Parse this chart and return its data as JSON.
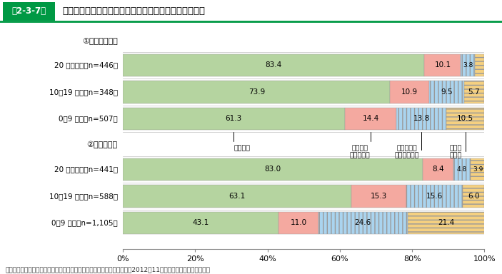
{
  "header_label": "第2-3-7図",
  "header_bg": "#009944",
  "title_text": "規模別・事業承継時期別の現経営者と先代経営者の関係",
  "section1_label": "①小規模事業者",
  "section2_label": "②中規模企業",
  "rows": [
    {
      "label": "20 年以上前（n=446）",
      "values": [
        83.4,
        10.1,
        3.8,
        2.7
      ]
    },
    {
      "label": "10～19 年前（n=348）",
      "values": [
        73.9,
        10.9,
        9.5,
        5.7
      ]
    },
    {
      "label": "0～9 年前（n=507）",
      "values": [
        61.3,
        14.4,
        13.8,
        10.5
      ]
    },
    {
      "label": "20 年以上前（n=441）",
      "values": [
        83.0,
        8.4,
        4.8,
        3.9
      ]
    },
    {
      "label": "10～19 年前（n=588）",
      "values": [
        63.1,
        15.3,
        15.6,
        6.0
      ]
    },
    {
      "label": "0～9 年前（n=1,105）",
      "values": [
        43.1,
        11.0,
        24.6,
        21.4
      ]
    }
  ],
  "colors": [
    "#b5d4a0",
    "#f4a9a0",
    "#aad4ef",
    "#f5d080"
  ],
  "legend_labels": [
    "息子・娘",
    "息子・娘\n以外の親族",
    "親族以外の\n役員・従業員",
    "社外の\n第三者"
  ],
  "footer": "資料：中小企業庁委色「中小企業の事業承継に関するアンケート調査」（2012年11月、（株）野村総合研究所）",
  "xtick_labels": [
    "0%",
    "20%",
    "40%",
    "60%",
    "80%",
    "100%"
  ],
  "xtick_vals": [
    0,
    20,
    40,
    60,
    80,
    100
  ]
}
